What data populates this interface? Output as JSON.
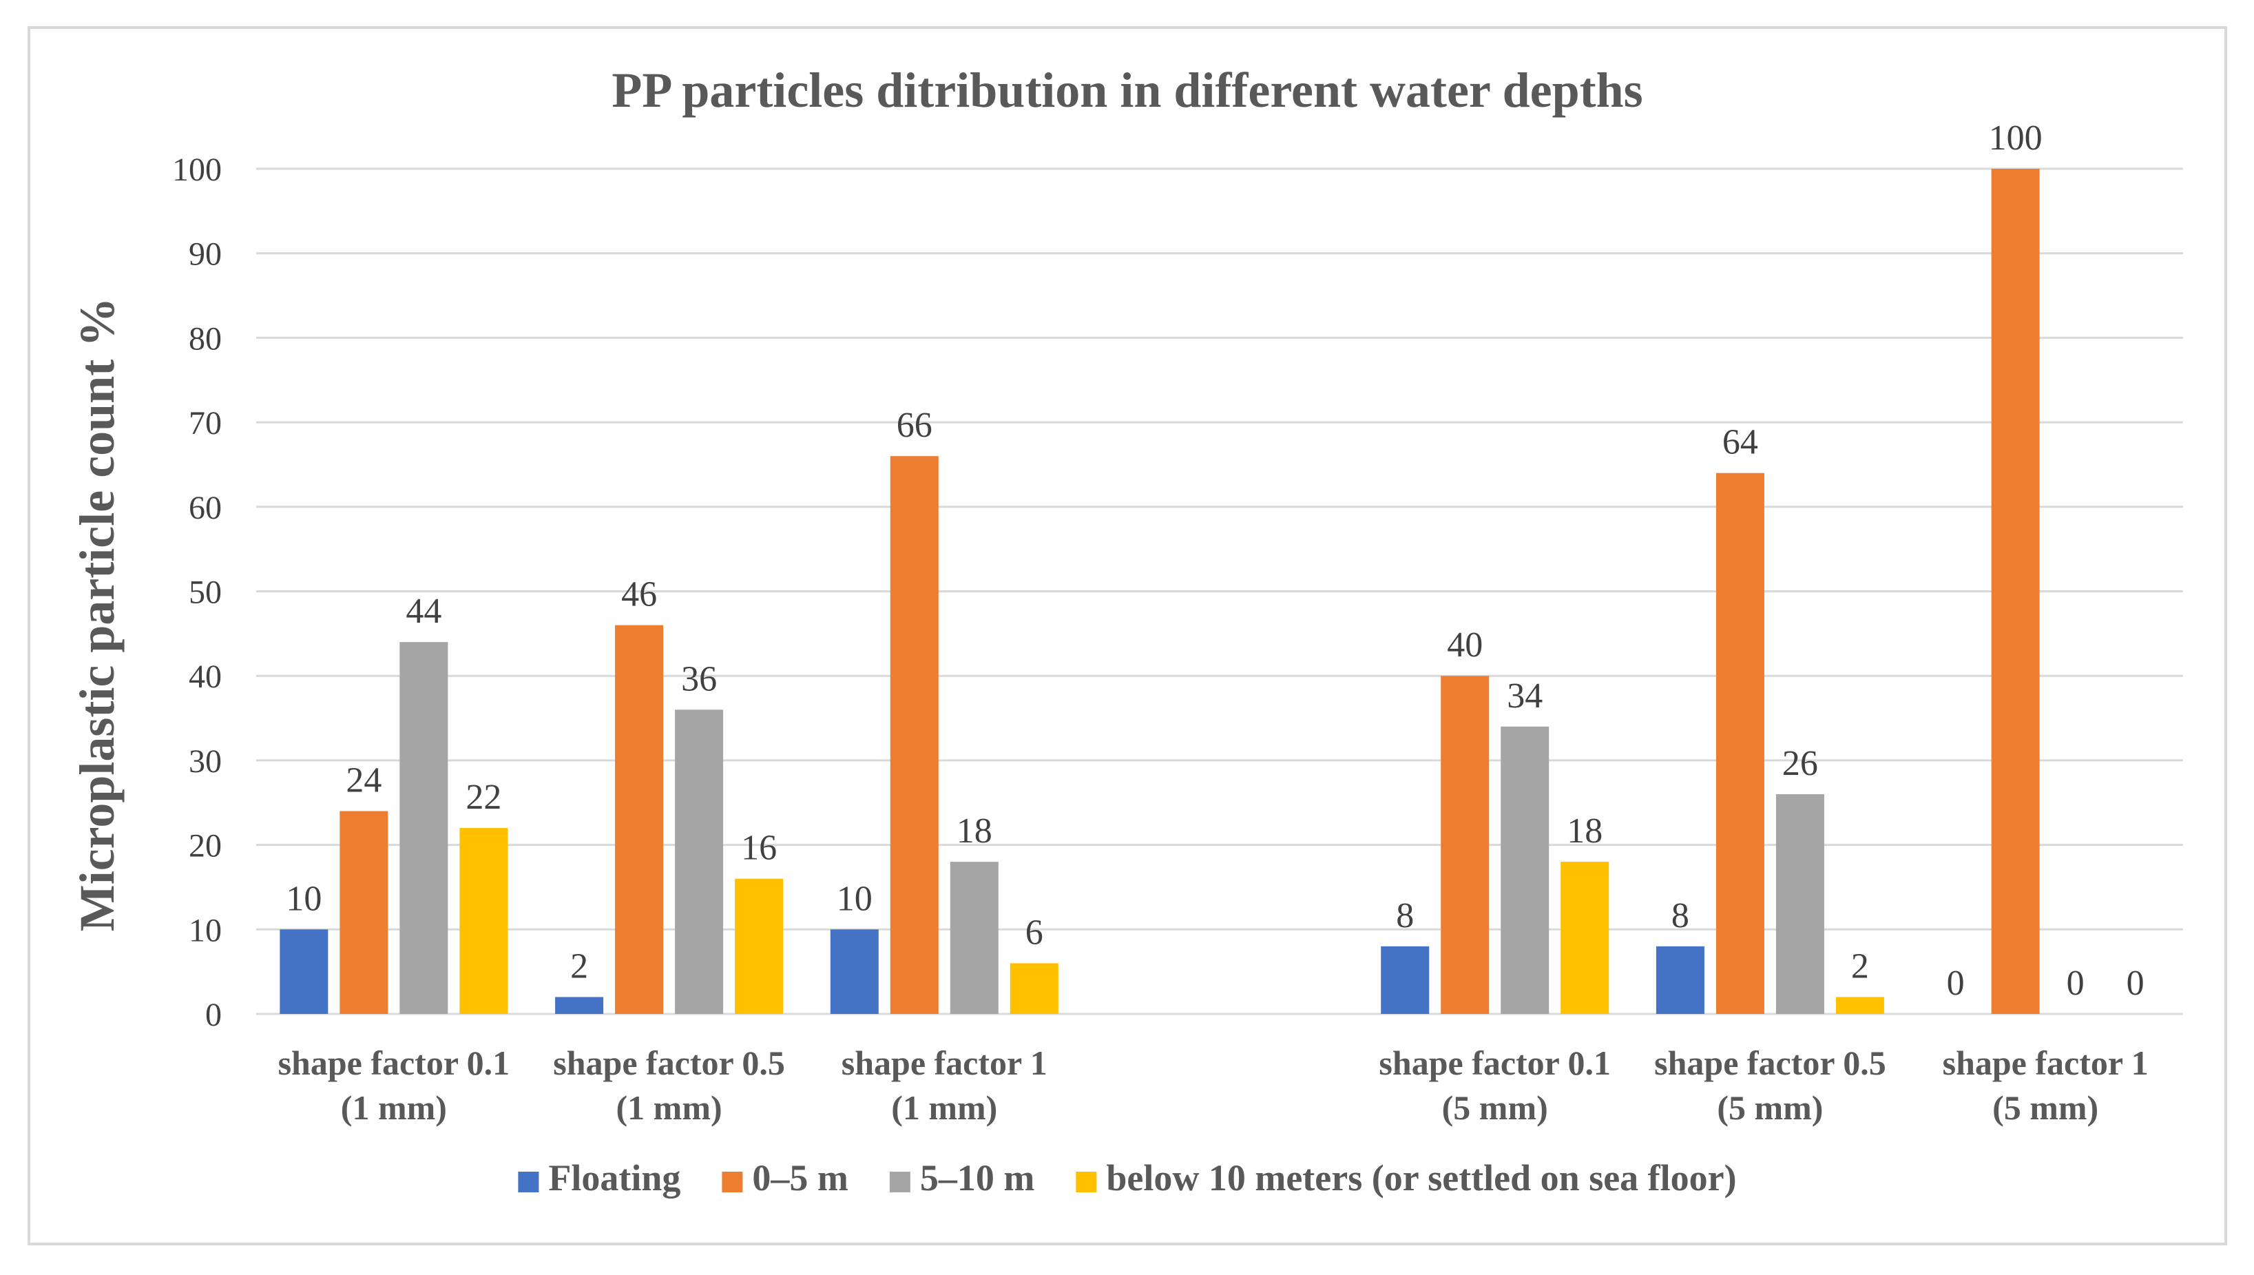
{
  "chart_data": {
    "type": "bar",
    "title": "PP particles ditribution in different water depths",
    "ylabel": "Microplastic particle count %",
    "xlabel": "",
    "ylim": [
      0,
      100
    ],
    "yticks": [
      0,
      10,
      20,
      30,
      40,
      50,
      60,
      70,
      80,
      90,
      100
    ],
    "grid": true,
    "legend_position": "bottom",
    "categories": [
      [
        "shape factor 0.1",
        "(1 mm)"
      ],
      [
        "shape factor 0.5",
        "(1 mm)"
      ],
      [
        "shape factor 1",
        "(1 mm)"
      ],
      [
        "",
        ""
      ],
      [
        "shape factor 0.1",
        "(5 mm)"
      ],
      [
        "shape factor 0.5",
        "(5 mm)"
      ],
      [
        "shape factor 1",
        "(5 mm)"
      ]
    ],
    "series": [
      {
        "name": "Floating",
        "color": "#4472C4",
        "values": [
          10,
          2,
          10,
          null,
          8,
          8,
          0
        ]
      },
      {
        "name": "0–5 m",
        "color": "#ED7D31",
        "values": [
          24,
          46,
          66,
          null,
          40,
          64,
          100
        ]
      },
      {
        "name": "5–10 m",
        "color": "#A5A5A5",
        "values": [
          44,
          36,
          18,
          null,
          34,
          26,
          0
        ]
      },
      {
        "name": "below 10 meters (or settled on sea floor)",
        "color": "#FFC000",
        "values": [
          22,
          16,
          6,
          null,
          18,
          2,
          0
        ]
      }
    ]
  }
}
